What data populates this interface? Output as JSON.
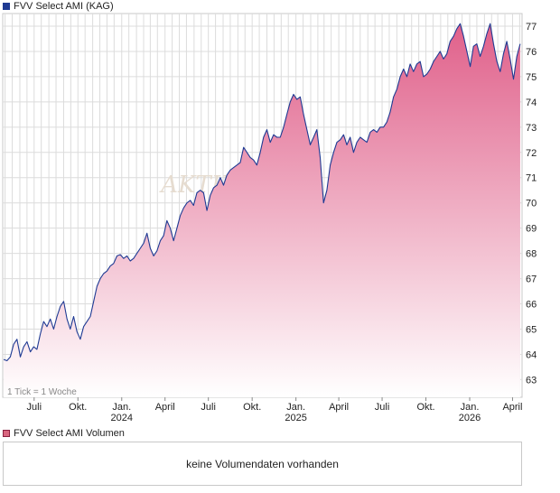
{
  "title": "FVV Select AMI (KAG)",
  "volume_legend": "FVV Select AMI Volumen",
  "no_volume_text": "keine Volumendaten vorhanden",
  "tick_note": "1 Tick = 1 Woche",
  "watermark": "AKTIEN",
  "colors": {
    "line": "#1f3a93",
    "fill_top": "#e0608a",
    "fill_bottom": "#ffffff",
    "grid": "#dcdcdc"
  },
  "chart_data": {
    "type": "area",
    "title": "FVV Select AMI (KAG)",
    "xlabel": "",
    "ylabel": "",
    "ylim": [
      62.3,
      77.5
    ],
    "grid": true,
    "y_ticks": [
      63,
      64,
      65,
      66,
      67,
      68,
      69,
      70,
      71,
      72,
      73,
      74,
      75,
      76,
      77
    ],
    "x_ticks": [
      {
        "date": "2023-07-01",
        "label": "Juli",
        "year": ""
      },
      {
        "date": "2023-10-01",
        "label": "Okt.",
        "year": ""
      },
      {
        "date": "2024-01-01",
        "label": "Jan.",
        "year": "2024"
      },
      {
        "date": "2024-04-01",
        "label": "April",
        "year": ""
      },
      {
        "date": "2024-07-01",
        "label": "Juli",
        "year": ""
      },
      {
        "date": "2024-10-01",
        "label": "Okt.",
        "year": ""
      },
      {
        "date": "2025-01-01",
        "label": "Jan.",
        "year": "2025"
      },
      {
        "date": "2025-04-01",
        "label": "April",
        "year": ""
      },
      {
        "date": "2025-07-01",
        "label": "Juli",
        "year": ""
      },
      {
        "date": "2025-10-01",
        "label": "Okt.",
        "year": ""
      },
      {
        "date": "2026-01-01",
        "label": "Jan.",
        "year": "2026"
      },
      {
        "date": "2026-04-01",
        "label": "April",
        "year": ""
      }
    ],
    "series": [
      {
        "values": [
          [
            "2023-04-28",
            63.8
          ],
          [
            "2023-05-05",
            63.75
          ],
          [
            "2023-05-12",
            63.9
          ],
          [
            "2023-05-19",
            64.4
          ],
          [
            "2023-05-26",
            64.6
          ],
          [
            "2023-06-02",
            63.9
          ],
          [
            "2023-06-09",
            64.3
          ],
          [
            "2023-06-16",
            64.5
          ],
          [
            "2023-06-23",
            64.1
          ],
          [
            "2023-06-30",
            64.3
          ],
          [
            "2023-07-07",
            64.2
          ],
          [
            "2023-07-14",
            64.8
          ],
          [
            "2023-07-21",
            65.3
          ],
          [
            "2023-07-28",
            65.1
          ],
          [
            "2023-08-04",
            65.4
          ],
          [
            "2023-08-11",
            65.0
          ],
          [
            "2023-08-18",
            65.5
          ],
          [
            "2023-08-25",
            65.9
          ],
          [
            "2023-09-01",
            66.1
          ],
          [
            "2023-09-08",
            65.4
          ],
          [
            "2023-09-15",
            65.0
          ],
          [
            "2023-09-22",
            65.5
          ],
          [
            "2023-09-29",
            64.9
          ],
          [
            "2023-10-06",
            64.6
          ],
          [
            "2023-10-13",
            65.1
          ],
          [
            "2023-10-20",
            65.3
          ],
          [
            "2023-10-27",
            65.5
          ],
          [
            "2023-11-03",
            66.1
          ],
          [
            "2023-11-10",
            66.7
          ],
          [
            "2023-11-17",
            67.0
          ],
          [
            "2023-11-24",
            67.2
          ],
          [
            "2023-12-01",
            67.3
          ],
          [
            "2023-12-08",
            67.5
          ],
          [
            "2023-12-15",
            67.6
          ],
          [
            "2023-12-22",
            67.9
          ],
          [
            "2023-12-29",
            67.95
          ],
          [
            "2024-01-05",
            67.8
          ],
          [
            "2024-01-12",
            67.9
          ],
          [
            "2024-01-19",
            67.7
          ],
          [
            "2024-01-26",
            67.8
          ],
          [
            "2024-02-02",
            68.0
          ],
          [
            "2024-02-09",
            68.2
          ],
          [
            "2024-02-16",
            68.4
          ],
          [
            "2024-02-23",
            68.8
          ],
          [
            "2024-03-01",
            68.2
          ],
          [
            "2024-03-08",
            67.9
          ],
          [
            "2024-03-15",
            68.1
          ],
          [
            "2024-03-22",
            68.5
          ],
          [
            "2024-03-29",
            68.7
          ],
          [
            "2024-04-05",
            69.3
          ],
          [
            "2024-04-12",
            69.0
          ],
          [
            "2024-04-19",
            68.5
          ],
          [
            "2024-04-26",
            69.0
          ],
          [
            "2024-05-03",
            69.5
          ],
          [
            "2024-05-10",
            69.8
          ],
          [
            "2024-05-17",
            70.0
          ],
          [
            "2024-05-24",
            70.1
          ],
          [
            "2024-05-31",
            69.9
          ],
          [
            "2024-06-07",
            70.4
          ],
          [
            "2024-06-14",
            70.5
          ],
          [
            "2024-06-21",
            70.4
          ],
          [
            "2024-06-28",
            69.7
          ],
          [
            "2024-07-05",
            70.3
          ],
          [
            "2024-07-12",
            70.6
          ],
          [
            "2024-07-19",
            70.7
          ],
          [
            "2024-07-26",
            71.0
          ],
          [
            "2024-08-02",
            70.7
          ],
          [
            "2024-08-09",
            71.1
          ],
          [
            "2024-08-16",
            71.3
          ],
          [
            "2024-08-23",
            71.4
          ],
          [
            "2024-08-30",
            71.5
          ],
          [
            "2024-09-06",
            71.6
          ],
          [
            "2024-09-13",
            72.2
          ],
          [
            "2024-09-20",
            72.0
          ],
          [
            "2024-09-27",
            71.8
          ],
          [
            "2024-10-04",
            71.7
          ],
          [
            "2024-10-11",
            71.5
          ],
          [
            "2024-10-18",
            72.0
          ],
          [
            "2024-10-25",
            72.6
          ],
          [
            "2024-11-01",
            72.9
          ],
          [
            "2024-11-08",
            72.4
          ],
          [
            "2024-11-15",
            72.7
          ],
          [
            "2024-11-22",
            72.6
          ],
          [
            "2024-11-29",
            72.6
          ],
          [
            "2024-12-06",
            73.0
          ],
          [
            "2024-12-13",
            73.5
          ],
          [
            "2024-12-20",
            74.0
          ],
          [
            "2024-12-27",
            74.3
          ],
          [
            "2025-01-03",
            74.1
          ],
          [
            "2025-01-10",
            74.2
          ],
          [
            "2025-01-17",
            73.5
          ],
          [
            "2025-01-24",
            72.9
          ],
          [
            "2025-01-31",
            72.3
          ],
          [
            "2025-02-07",
            72.6
          ],
          [
            "2025-02-14",
            72.9
          ],
          [
            "2025-02-21",
            71.8
          ],
          [
            "2025-02-28",
            70.0
          ],
          [
            "2025-03-07",
            70.5
          ],
          [
            "2025-03-14",
            71.5
          ],
          [
            "2025-03-21",
            72.0
          ],
          [
            "2025-03-28",
            72.4
          ],
          [
            "2025-04-04",
            72.5
          ],
          [
            "2025-04-11",
            72.7
          ],
          [
            "2025-04-18",
            72.3
          ],
          [
            "2025-04-25",
            72.6
          ],
          [
            "2025-05-02",
            72.0
          ],
          [
            "2025-05-09",
            72.4
          ],
          [
            "2025-05-16",
            72.6
          ],
          [
            "2025-05-23",
            72.5
          ],
          [
            "2025-05-30",
            72.4
          ],
          [
            "2025-06-06",
            72.8
          ],
          [
            "2025-06-13",
            72.9
          ],
          [
            "2025-06-20",
            72.8
          ],
          [
            "2025-06-27",
            73.0
          ],
          [
            "2025-07-04",
            73.0
          ],
          [
            "2025-07-11",
            73.2
          ],
          [
            "2025-07-18",
            73.6
          ],
          [
            "2025-07-25",
            74.2
          ],
          [
            "2025-08-01",
            74.5
          ],
          [
            "2025-08-08",
            75.0
          ],
          [
            "2025-08-15",
            75.3
          ],
          [
            "2025-08-22",
            75.0
          ],
          [
            "2025-08-29",
            75.5
          ],
          [
            "2025-09-05",
            75.2
          ],
          [
            "2025-09-12",
            75.5
          ],
          [
            "2025-09-19",
            75.6
          ],
          [
            "2025-09-26",
            75.0
          ],
          [
            "2025-10-03",
            75.1
          ],
          [
            "2025-10-10",
            75.3
          ],
          [
            "2025-10-17",
            75.6
          ],
          [
            "2025-10-24",
            75.8
          ],
          [
            "2025-10-31",
            76.0
          ],
          [
            "2025-11-07",
            75.7
          ],
          [
            "2025-11-14",
            75.9
          ],
          [
            "2025-11-21",
            76.4
          ],
          [
            "2025-11-28",
            76.6
          ],
          [
            "2025-12-05",
            76.9
          ],
          [
            "2025-12-12",
            77.1
          ],
          [
            "2025-12-19",
            76.6
          ],
          [
            "2025-12-26",
            76.0
          ],
          [
            "2026-01-02",
            75.4
          ],
          [
            "2026-01-09",
            76.2
          ],
          [
            "2026-01-16",
            76.3
          ],
          [
            "2026-01-23",
            75.8
          ],
          [
            "2026-01-30",
            76.2
          ],
          [
            "2026-02-06",
            76.7
          ],
          [
            "2026-02-13",
            77.1
          ],
          [
            "2026-02-20",
            76.3
          ],
          [
            "2026-02-27",
            75.6
          ],
          [
            "2026-03-06",
            75.2
          ],
          [
            "2026-03-13",
            75.9
          ],
          [
            "2026-03-20",
            76.4
          ],
          [
            "2026-03-27",
            75.7
          ],
          [
            "2026-04-03",
            74.9
          ],
          [
            "2026-04-10",
            75.8
          ],
          [
            "2026-04-17",
            76.3
          ]
        ]
      }
    ]
  }
}
